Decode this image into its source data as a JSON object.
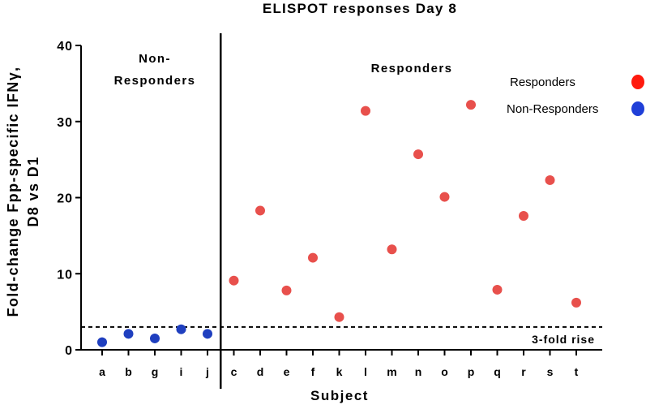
{
  "chart_data": {
    "type": "scatter",
    "title": "ELISPOT responses Day 8",
    "xlabel": "Subject",
    "ylabel": "Fold-change Fpp-specific IFNγ, D8 vs D1",
    "ylim": [
      0,
      40
    ],
    "yticks": [
      0,
      10,
      20,
      30,
      40
    ],
    "categories": [
      "a",
      "b",
      "g",
      "i",
      "j",
      "c",
      "d",
      "e",
      "f",
      "k",
      "l",
      "m",
      "n",
      "o",
      "p",
      "q",
      "r",
      "s",
      "t"
    ],
    "series": [
      {
        "name": "Non-Responders",
        "color": "#1f3fbf",
        "points": [
          {
            "x": "a",
            "y": 1.0
          },
          {
            "x": "b",
            "y": 2.1
          },
          {
            "x": "g",
            "y": 1.5
          },
          {
            "x": "i",
            "y": 2.7
          },
          {
            "x": "j",
            "y": 2.1
          }
        ]
      },
      {
        "name": "Responders",
        "color": "#e8504c",
        "points": [
          {
            "x": "c",
            "y": 9.1
          },
          {
            "x": "d",
            "y": 18.3
          },
          {
            "x": "e",
            "y": 7.8
          },
          {
            "x": "f",
            "y": 12.1
          },
          {
            "x": "k",
            "y": 4.3
          },
          {
            "x": "l",
            "y": 31.4
          },
          {
            "x": "m",
            "y": 13.2
          },
          {
            "x": "n",
            "y": 25.7
          },
          {
            "x": "o",
            "y": 20.1
          },
          {
            "x": "p",
            "y": 32.2
          },
          {
            "x": "q",
            "y": 7.9
          },
          {
            "x": "r",
            "y": 17.6
          },
          {
            "x": "s",
            "y": 22.3
          },
          {
            "x": "t",
            "y": 6.2
          }
        ]
      }
    ],
    "group_labels": {
      "non_responders": [
        "Non-",
        "Responders"
      ],
      "responders": "Responders"
    },
    "reference_line": {
      "y": 3,
      "label": "3-fold rise",
      "style": "dashed"
    },
    "divider_after_category": "j",
    "legend": {
      "position": "top-right",
      "items": [
        {
          "label": "Responders",
          "color": "#ff1a0e"
        },
        {
          "label": "Non-Responders",
          "color": "#1f3fd8"
        }
      ]
    },
    "grid": false
  }
}
